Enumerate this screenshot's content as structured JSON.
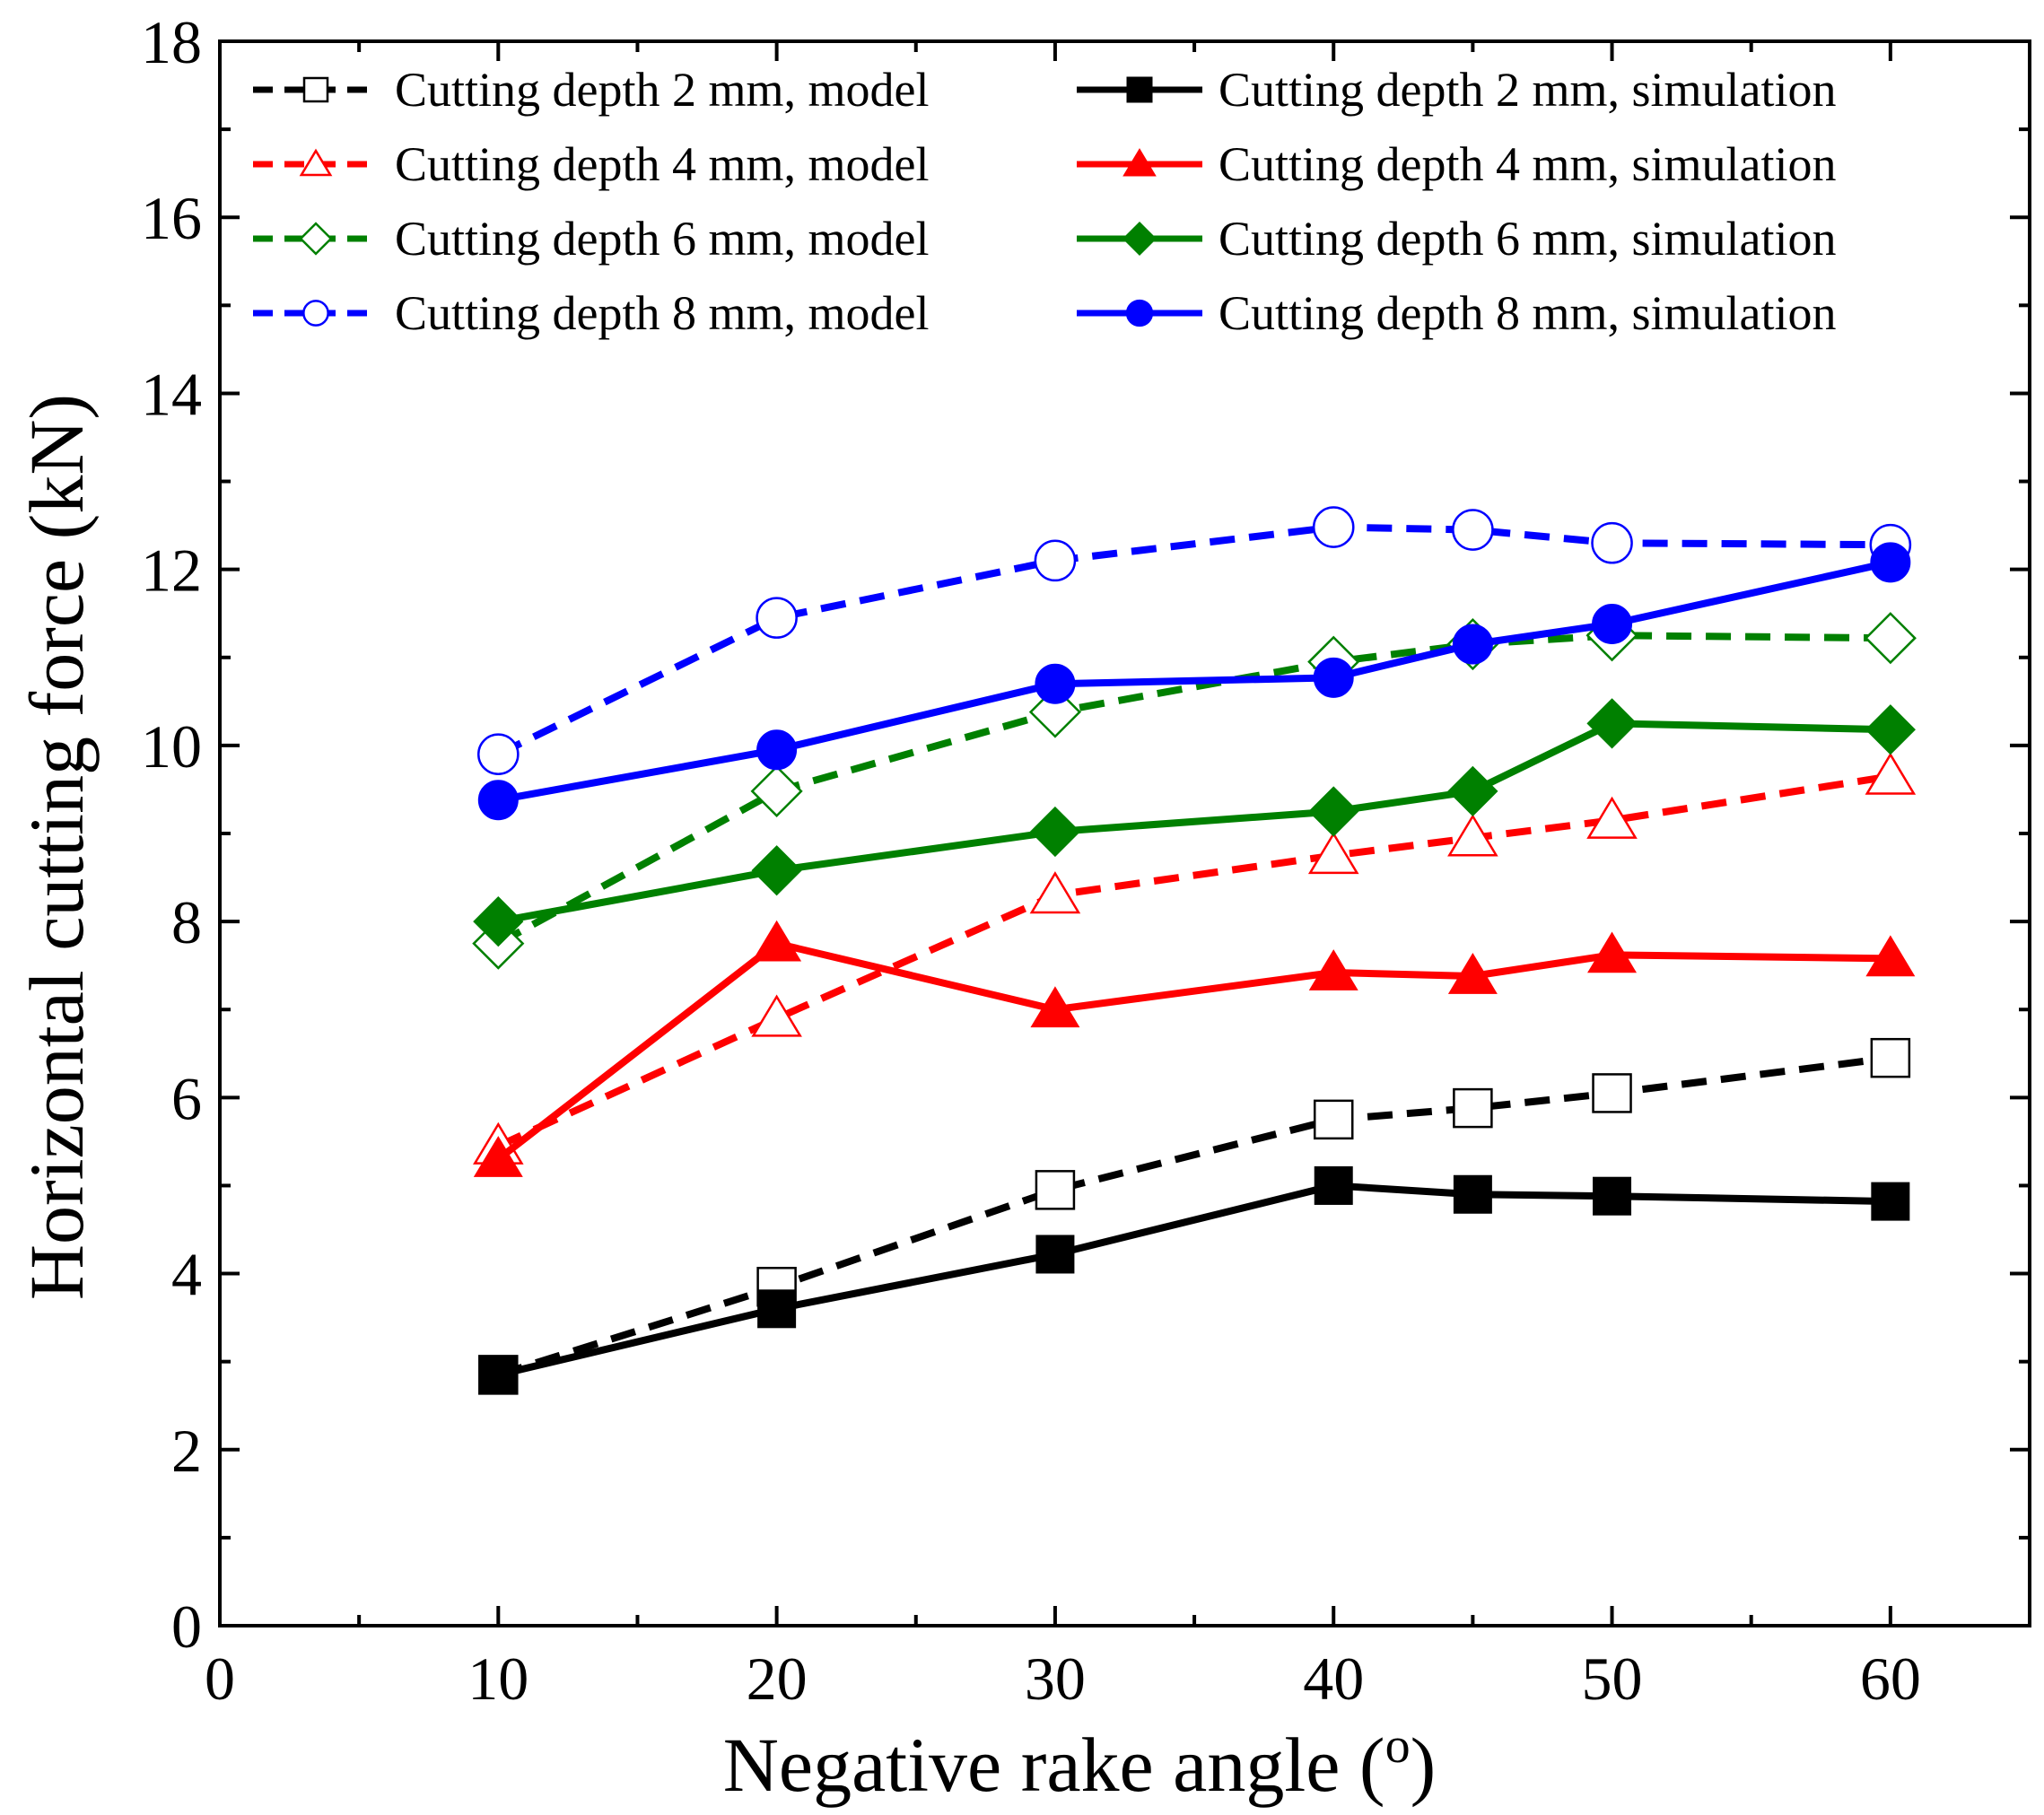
{
  "chart_data": {
    "type": "line",
    "title": "",
    "xlabel": "Negative rake angle  (",
    "xlabel_superscript": "o",
    "xlabel_suffix": ")",
    "ylabel": "Horizontal cutting force (kN)",
    "xlim": [
      0,
      65
    ],
    "ylim": [
      0,
      18
    ],
    "x_ticks": [
      0,
      10,
      20,
      30,
      40,
      50,
      60
    ],
    "y_ticks": [
      0,
      2,
      4,
      6,
      8,
      10,
      12,
      14,
      16,
      18
    ],
    "x_minor_step": 5,
    "y_minor_step": 1,
    "grid": false,
    "legend_position": "top",
    "x": [
      10,
      20,
      30,
      40,
      45,
      50,
      60
    ],
    "series": [
      {
        "name": "Cutting depth 2 mm, model",
        "color": "#000000",
        "dash": true,
        "marker": "square",
        "filled": false,
        "values": [
          2.85,
          3.85,
          4.95,
          5.75,
          5.88,
          6.05,
          6.45
        ]
      },
      {
        "name": "Cutting depth 4 mm, model",
        "color": "#ff0000",
        "dash": true,
        "marker": "triangle",
        "filled": false,
        "values": [
          5.45,
          6.9,
          8.3,
          8.75,
          8.95,
          9.15,
          9.65
        ]
      },
      {
        "name": "Cutting depth 6 mm, model",
        "color": "#008000",
        "dash": true,
        "marker": "diamond",
        "filled": false,
        "values": [
          7.75,
          9.48,
          10.38,
          10.95,
          11.15,
          11.25,
          11.22
        ]
      },
      {
        "name": "Cutting depth 8 mm, model",
        "color": "#0000ff",
        "dash": true,
        "marker": "circle",
        "filled": false,
        "values": [
          9.9,
          11.45,
          12.1,
          12.48,
          12.45,
          12.3,
          12.28
        ]
      },
      {
        "name": "Cutting depth 2 mm, simulation",
        "color": "#000000",
        "dash": false,
        "marker": "square",
        "filled": true,
        "values": [
          2.85,
          3.6,
          4.22,
          5.0,
          4.9,
          4.88,
          4.82
        ]
      },
      {
        "name": "Cutting depth 4 mm, simulation",
        "color": "#ff0000",
        "dash": false,
        "marker": "triangle",
        "filled": true,
        "values": [
          5.3,
          7.75,
          7.0,
          7.42,
          7.38,
          7.62,
          7.58
        ]
      },
      {
        "name": "Cutting depth 6 mm, simulation",
        "color": "#008000",
        "dash": false,
        "marker": "diamond",
        "filled": true,
        "values": [
          8.0,
          8.58,
          9.02,
          9.25,
          9.48,
          10.25,
          10.18
        ]
      },
      {
        "name": "Cutting depth 8 mm,  simulation",
        "color": "#0000ff",
        "dash": false,
        "marker": "circle",
        "filled": true,
        "values": [
          9.38,
          9.95,
          10.7,
          10.77,
          11.15,
          11.38,
          12.08
        ]
      }
    ]
  }
}
